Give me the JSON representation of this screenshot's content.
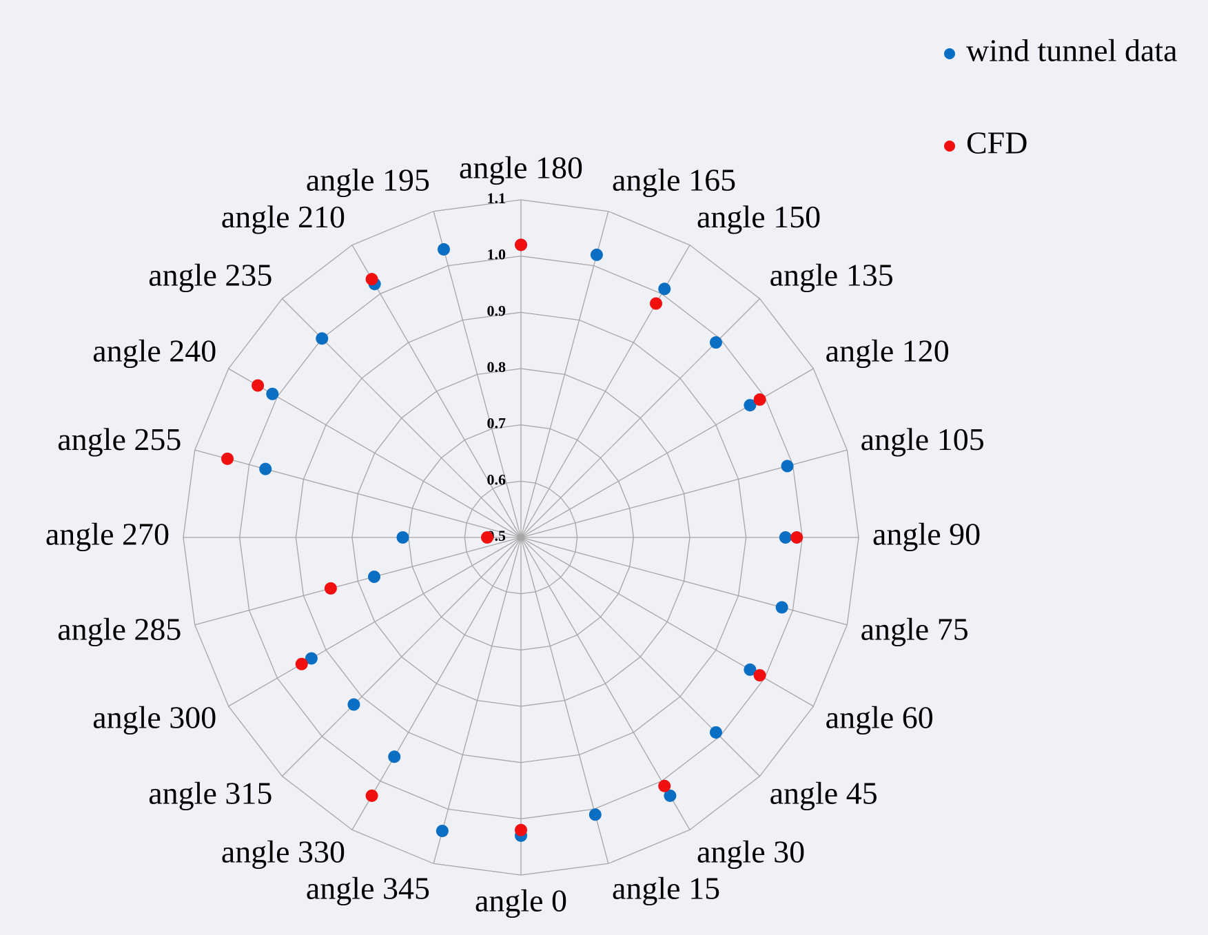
{
  "chart_data": {
    "type": "radar",
    "categories": [
      "angle 180",
      "angle 165",
      "angle 150",
      "angle 135",
      "angle 120",
      "angle 105",
      "angle 90",
      "angle 75",
      "angle 60",
      "angle 45",
      "angle 30",
      "angle 15",
      "angle 0",
      "angle 345",
      "angle 330",
      "angle 315",
      "angle 300",
      "angle 285",
      "angle 270",
      "angle 255",
      "angle 240",
      "angle 235",
      "angle 210",
      "angle 195"
    ],
    "series": [
      {
        "name": "wind tunnel data",
        "color": "#0a6fc2",
        "values": [
          1.02,
          1.02,
          1.01,
          0.99,
          0.97,
          0.99,
          0.97,
          0.98,
          0.97,
          0.99,
          1.03,
          1.01,
          1.03,
          1.04,
          0.95,
          0.92,
          0.93,
          0.77,
          0.71,
          0.97,
          1.01,
          1.0,
          1.02,
          1.03
        ]
      },
      {
        "name": "CFD",
        "color": "#f01010",
        "values": [
          1.02,
          null,
          0.98,
          null,
          0.99,
          null,
          0.99,
          null,
          0.99,
          null,
          1.01,
          null,
          1.02,
          null,
          1.03,
          null,
          0.95,
          0.85,
          0.56,
          1.04,
          1.04,
          null,
          1.03,
          null
        ]
      }
    ],
    "ylim": [
      0.5,
      1.1
    ],
    "yticks": [
      0.5,
      0.6,
      0.7,
      0.8,
      0.9,
      {
        "value": 1.0,
        "label": "1.0"
      },
      1.1
    ],
    "grid": true,
    "legend": "top-right"
  }
}
